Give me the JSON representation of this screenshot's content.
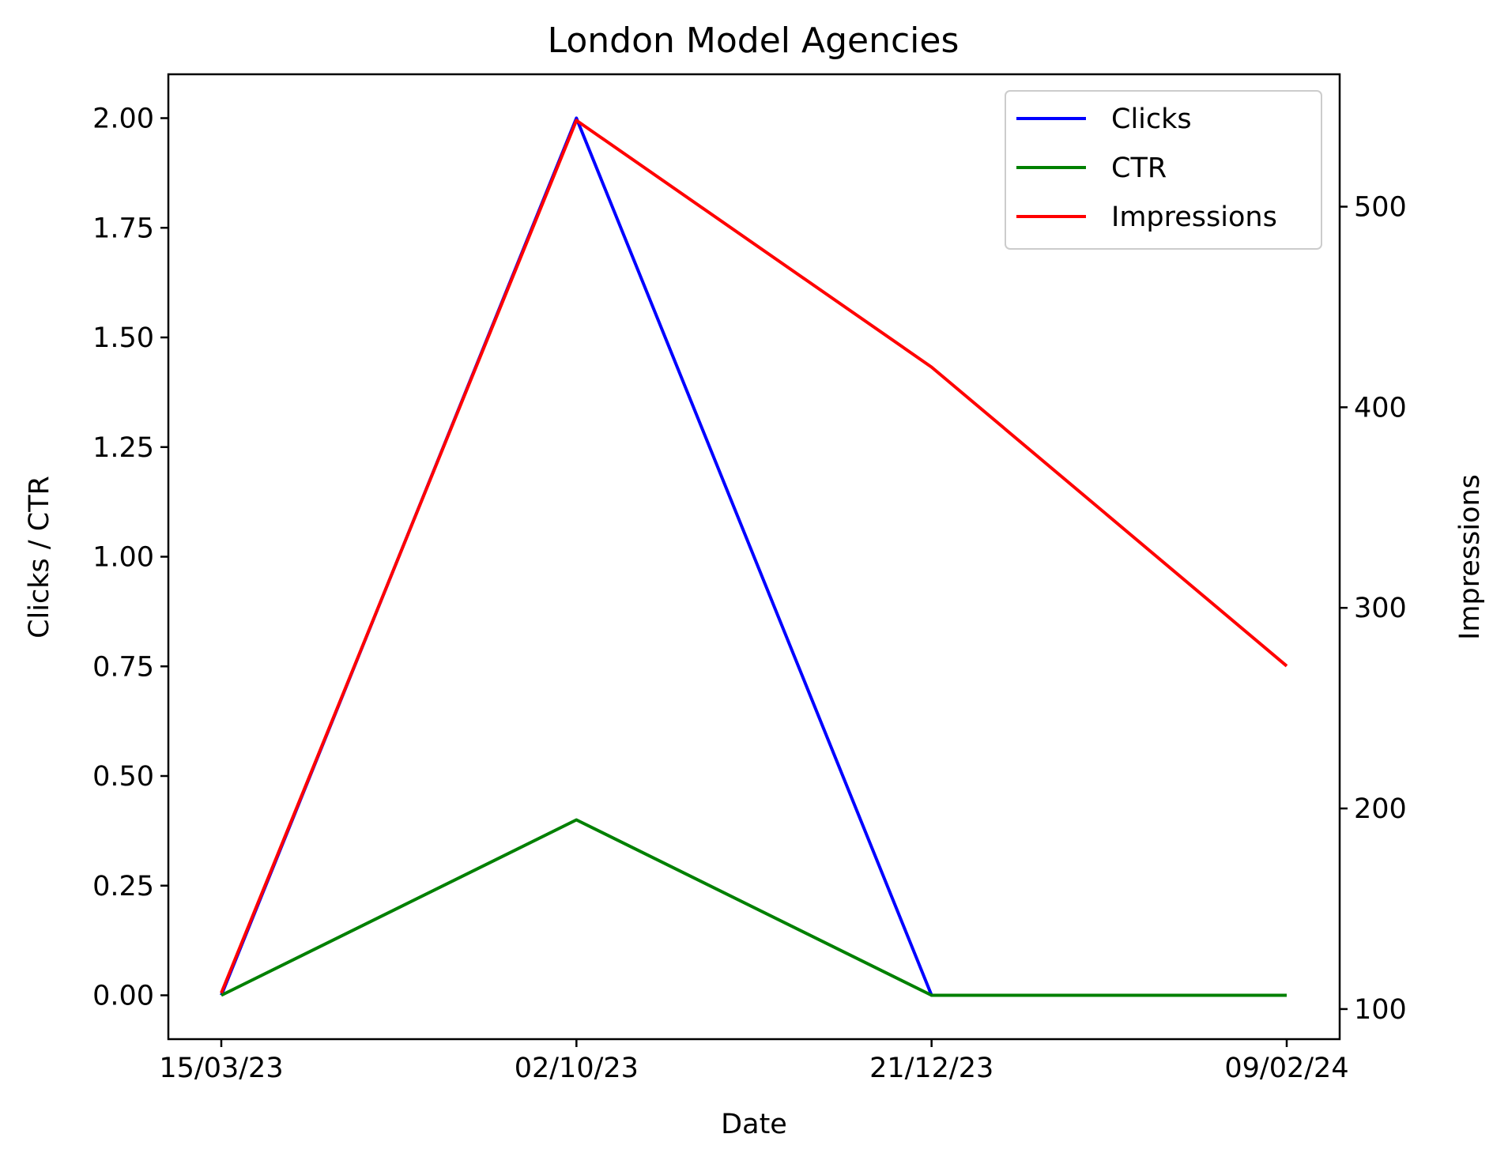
{
  "chart_data": {
    "type": "line",
    "title": "London Model Agencies",
    "xlabel": "Date",
    "ylabel_left": "Clicks / CTR",
    "ylabel_right": "Impressions",
    "categories": [
      "15/03/23",
      "02/10/23",
      "21/12/23",
      "09/02/24"
    ],
    "y_left": {
      "ylim": [
        -0.1,
        2.1
      ],
      "ticks": [
        0.0,
        0.25,
        0.5,
        0.75,
        1.0,
        1.25,
        1.5,
        1.75,
        2.0
      ],
      "tick_labels": [
        "0.00",
        "0.25",
        "0.50",
        "0.75",
        "1.00",
        "1.25",
        "1.50",
        "1.75",
        "2.00"
      ]
    },
    "y_right": {
      "ylim": [
        85,
        566
      ],
      "ticks": [
        100,
        200,
        300,
        400,
        500
      ],
      "tick_labels": [
        "100",
        "200",
        "300",
        "400",
        "500"
      ]
    },
    "series": [
      {
        "name": "Clicks",
        "axis": "left",
        "color": "#0000ff",
        "values": [
          0,
          2,
          0,
          0
        ]
      },
      {
        "name": "CTR",
        "axis": "left",
        "color": "#008000",
        "values": [
          0,
          0.4,
          0,
          0
        ]
      },
      {
        "name": "Impressions",
        "axis": "right",
        "color": "#ff0000",
        "values": [
          108,
          543,
          420,
          271
        ]
      }
    ],
    "legend_position": "top-right",
    "grid": false
  }
}
